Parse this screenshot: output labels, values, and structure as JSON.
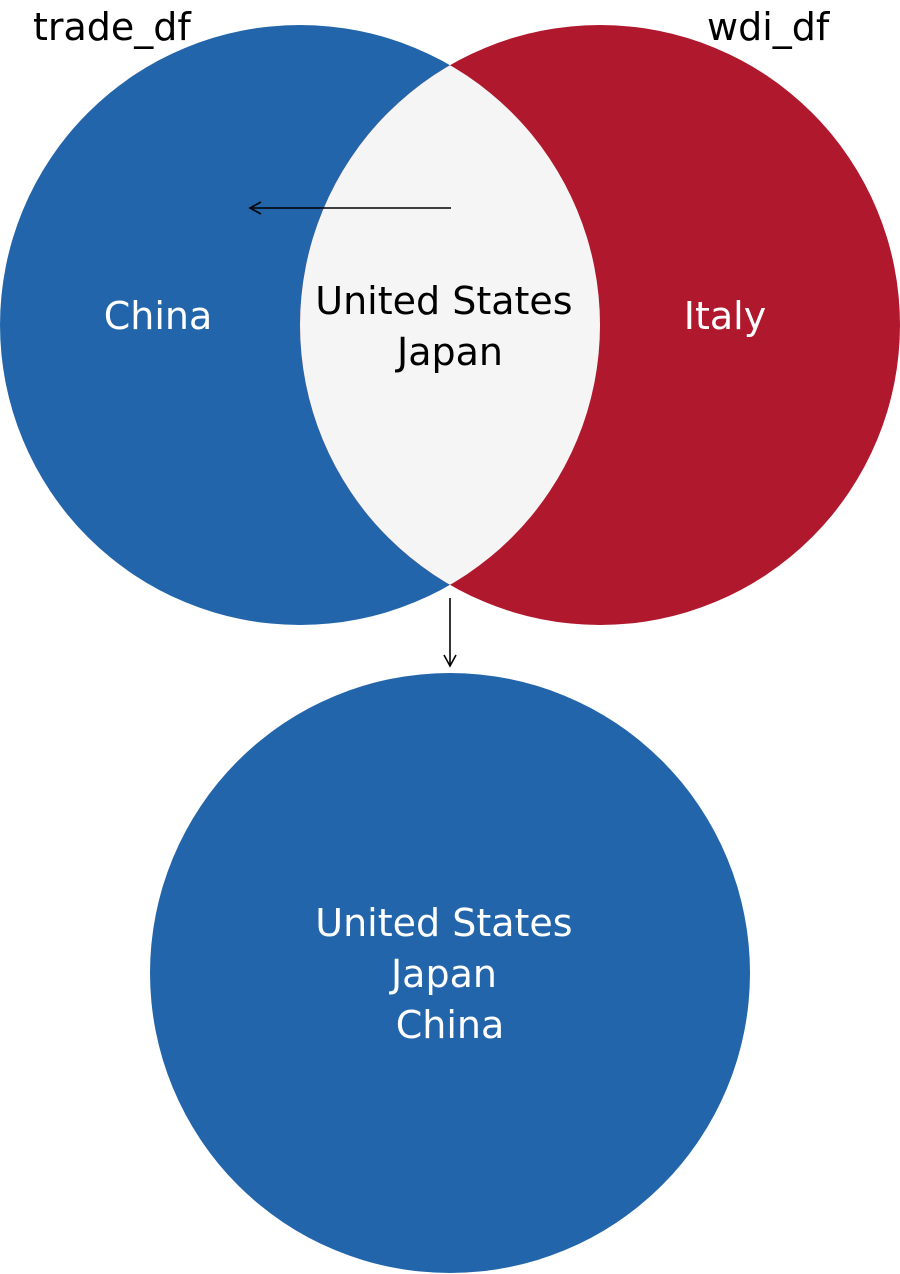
{
  "sets": {
    "left": {
      "name": "trade_df",
      "only": "China",
      "color": "#2365AB"
    },
    "right": {
      "name": "wdi_df",
      "only": "Italy",
      "color": "#B0182D"
    },
    "intersection": {
      "lines": [
        "United States",
        "Japan"
      ],
      "color": "#F5F5F5"
    }
  },
  "result": {
    "lines": [
      "United States",
      "Japan",
      "China"
    ],
    "color": "#2365AB"
  },
  "arrow_color": "#000000"
}
